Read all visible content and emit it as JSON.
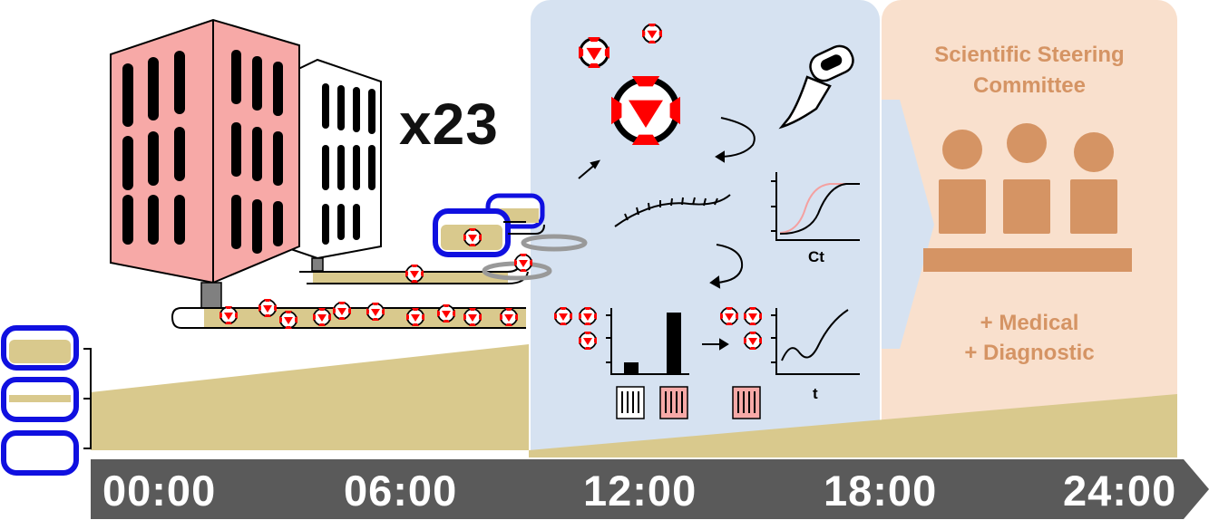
{
  "diagram": {
    "multiplier": "x23",
    "qpcr_axis_label": "Ct",
    "trend_axis_label": "t",
    "committee": {
      "title_line1": "Scientific Steering",
      "title_line2": "Committee",
      "line1": "+ Medical",
      "line2": "+ Diagnostic"
    },
    "timeline": [
      "00:00",
      "06:00",
      "12:00",
      "18:00",
      "24:00"
    ],
    "colors": {
      "building_pink": "#f7a9a7",
      "sample_tan": "#d9c98d",
      "lab_panel": "#d6e2f1",
      "committee_panel": "#f9e0cd",
      "committee_accent": "#d59464",
      "container_blue": "#1010e0",
      "virus_red": "#ff0000",
      "timeline_gray": "#5a5a5a"
    },
    "icons": [
      "building-icon",
      "virus-icon",
      "pipette-icon",
      "rna-strand-icon",
      "sample-tube-icon",
      "person-icon",
      "arrow-icon"
    ]
  }
}
